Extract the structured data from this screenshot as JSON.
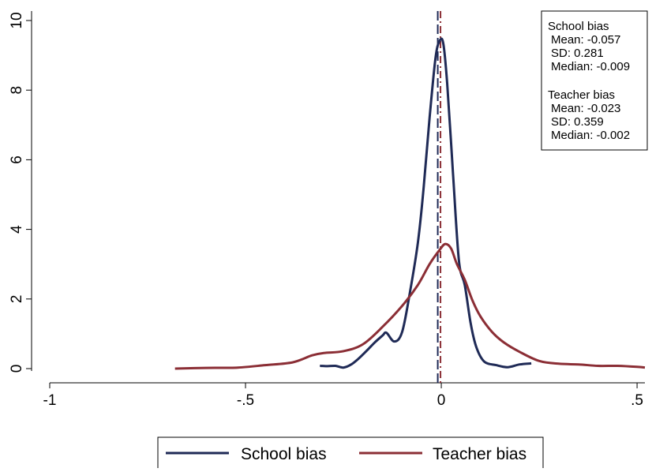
{
  "chart_data": {
    "type": "line",
    "title": "",
    "xlabel": "",
    "ylabel": "",
    "xlim": [
      -1,
      0.52
    ],
    "ylim": [
      0,
      10
    ],
    "x_ticks": [
      {
        "value": -1,
        "label": "-1"
      },
      {
        "value": -0.5,
        "label": "-.5"
      },
      {
        "value": 0,
        "label": "0"
      },
      {
        "value": 0.5,
        "label": ".5"
      }
    ],
    "y_ticks": [
      {
        "value": 0,
        "label": "0"
      },
      {
        "value": 2,
        "label": "2"
      },
      {
        "value": 4,
        "label": "4"
      },
      {
        "value": 6,
        "label": "6"
      },
      {
        "value": 8,
        "label": "8"
      },
      {
        "value": 10,
        "label": "10"
      }
    ],
    "grid": false,
    "legend_position": "bottom",
    "series": [
      {
        "name": "School bias",
        "color": "#1f2a56",
        "points": [
          [
            -0.31,
            0.08
          ],
          [
            -0.29,
            0.07
          ],
          [
            -0.27,
            0.08
          ],
          [
            -0.25,
            0.03
          ],
          [
            -0.23,
            0.12
          ],
          [
            -0.21,
            0.3
          ],
          [
            -0.19,
            0.52
          ],
          [
            -0.17,
            0.75
          ],
          [
            -0.15,
            0.95
          ],
          [
            -0.14,
            1.03
          ],
          [
            -0.12,
            0.78
          ],
          [
            -0.1,
            1.05
          ],
          [
            -0.08,
            2.2
          ],
          [
            -0.06,
            3.6
          ],
          [
            -0.045,
            5.2
          ],
          [
            -0.03,
            7.2
          ],
          [
            -0.015,
            8.9
          ],
          [
            -0.005,
            9.4
          ],
          [
            0.005,
            9.35
          ],
          [
            0.015,
            8.2
          ],
          [
            0.03,
            5.6
          ],
          [
            0.045,
            3.1
          ],
          [
            0.06,
            2.4
          ],
          [
            0.075,
            1.3
          ],
          [
            0.09,
            0.6
          ],
          [
            0.11,
            0.2
          ],
          [
            0.14,
            0.1
          ],
          [
            0.17,
            0.04
          ],
          [
            0.2,
            0.12
          ],
          [
            0.23,
            0.15
          ]
        ],
        "stats": {
          "title": "School bias",
          "lines": [
            "Mean: -0.057",
            "SD: 0.281",
            "Median: -0.009"
          ]
        },
        "median": -0.009
      },
      {
        "name": "Teacher bias",
        "color": "#8b2e35",
        "points": [
          [
            -0.68,
            0.0
          ],
          [
            -0.6,
            0.02
          ],
          [
            -0.52,
            0.03
          ],
          [
            -0.45,
            0.1
          ],
          [
            -0.38,
            0.18
          ],
          [
            -0.33,
            0.38
          ],
          [
            -0.3,
            0.45
          ],
          [
            -0.25,
            0.5
          ],
          [
            -0.2,
            0.7
          ],
          [
            -0.15,
            1.2
          ],
          [
            -0.1,
            1.8
          ],
          [
            -0.06,
            2.4
          ],
          [
            -0.03,
            3.0
          ],
          [
            -0.005,
            3.4
          ],
          [
            0.01,
            3.58
          ],
          [
            0.025,
            3.45
          ],
          [
            0.04,
            3.0
          ],
          [
            0.06,
            2.55
          ],
          [
            0.08,
            1.95
          ],
          [
            0.1,
            1.5
          ],
          [
            0.13,
            1.05
          ],
          [
            0.16,
            0.75
          ],
          [
            0.2,
            0.48
          ],
          [
            0.25,
            0.22
          ],
          [
            0.3,
            0.14
          ],
          [
            0.35,
            0.12
          ],
          [
            0.4,
            0.08
          ],
          [
            0.45,
            0.08
          ],
          [
            0.5,
            0.05
          ],
          [
            0.52,
            0.03
          ]
        ],
        "stats": {
          "title": "Teacher bias",
          "lines": [
            "Mean: -0.023",
            "SD: 0.359",
            "Median: -0.002"
          ]
        },
        "median": -0.002
      }
    ]
  }
}
